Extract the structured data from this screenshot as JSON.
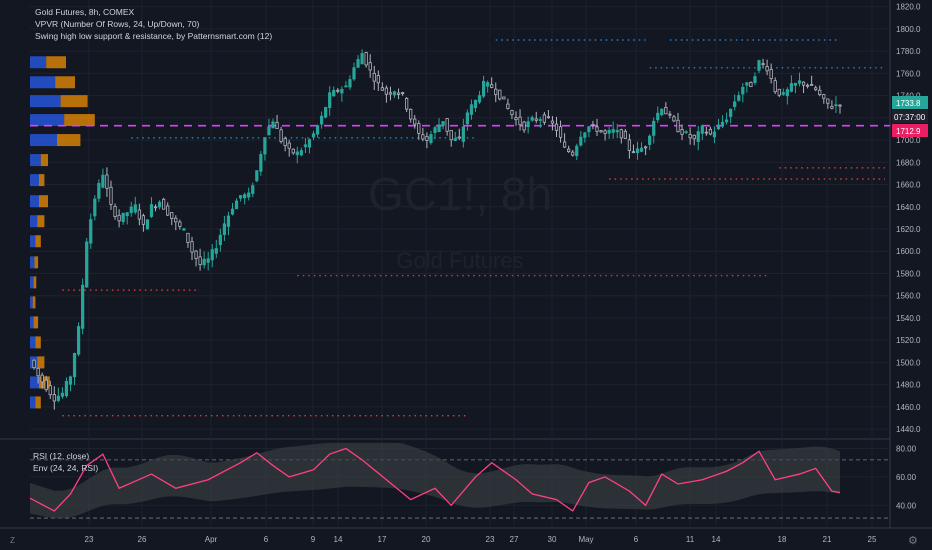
{
  "legend": {
    "title": "Gold Futures, 8h, COMEX",
    "vpvr": "VPVR (Number Of Rows, 24, Up/Down, 70)",
    "swing": "Swing high low support & resistance, by Patternsmart.com (12)"
  },
  "watermark": {
    "symbol": "GC1!, 8h",
    "name": "Gold Futures"
  },
  "rsi_legend": {
    "rsi": "RSI (12, close)",
    "env": "Env (24, 24, RSI)"
  },
  "price_tags": {
    "last": "1733.8",
    "countdown": "07:37:00",
    "level": "1712.9"
  },
  "buttons": {
    "timezone": "Z",
    "settings": "settings-icon"
  },
  "colors": {
    "background": "#131722",
    "up": "#26a69a",
    "down": "#ef5350",
    "volume_up": "#2962ff",
    "volume_down": "#ff9800",
    "rsi_line": "#ff4081",
    "envelope": "#3c4346",
    "level_line": "#e040fb",
    "resistance_dots": "#2196f3",
    "support_dots": "#f44336"
  },
  "chart_data": {
    "type": "candlestick",
    "price_axis": {
      "ticks": [
        1440,
        1460,
        1480,
        1500,
        1520,
        1540,
        1560,
        1580,
        1600,
        1620,
        1640,
        1660,
        1680,
        1700,
        1720,
        1740,
        1760,
        1780,
        1800,
        1820
      ],
      "range": [
        1432,
        1826
      ]
    },
    "time_axis": {
      "labels": [
        "23",
        "26",
        "Apr",
        "6",
        "9",
        "14",
        "17",
        "20",
        "23",
        "27",
        "30",
        "May",
        "6",
        "11",
        "14",
        "18",
        "21",
        "25"
      ]
    },
    "close_path": [
      [
        0,
        1502
      ],
      [
        2,
        1488
      ],
      [
        4,
        1478
      ],
      [
        6,
        1468
      ],
      [
        8,
        1472
      ],
      [
        10,
        1488
      ],
      [
        12,
        1530
      ],
      [
        14,
        1610
      ],
      [
        16,
        1648
      ],
      [
        18,
        1670
      ],
      [
        20,
        1640
      ],
      [
        22,
        1628
      ],
      [
        24,
        1635
      ],
      [
        26,
        1640
      ],
      [
        28,
        1622
      ],
      [
        30,
        1640
      ],
      [
        32,
        1645
      ],
      [
        34,
        1635
      ],
      [
        36,
        1625
      ],
      [
        38,
        1618
      ],
      [
        40,
        1600
      ],
      [
        42,
        1588
      ],
      [
        44,
        1592
      ],
      [
        46,
        1605
      ],
      [
        48,
        1625
      ],
      [
        50,
        1640
      ],
      [
        52,
        1650
      ],
      [
        54,
        1650
      ],
      [
        56,
        1672
      ],
      [
        58,
        1705
      ],
      [
        60,
        1718
      ],
      [
        62,
        1700
      ],
      [
        64,
        1690
      ],
      [
        66,
        1688
      ],
      [
        68,
        1695
      ],
      [
        70,
        1705
      ],
      [
        72,
        1720
      ],
      [
        74,
        1740
      ],
      [
        76,
        1745
      ],
      [
        78,
        1748
      ],
      [
        80,
        1765
      ],
      [
        82,
        1778
      ],
      [
        84,
        1762
      ],
      [
        86,
        1750
      ],
      [
        88,
        1742
      ],
      [
        90,
        1745
      ],
      [
        92,
        1740
      ],
      [
        94,
        1720
      ],
      [
        96,
        1705
      ],
      [
        98,
        1700
      ],
      [
        100,
        1710
      ],
      [
        102,
        1718
      ],
      [
        104,
        1700
      ],
      [
        106,
        1700
      ],
      [
        108,
        1725
      ],
      [
        110,
        1735
      ],
      [
        112,
        1750
      ],
      [
        114,
        1748
      ],
      [
        116,
        1740
      ],
      [
        118,
        1728
      ],
      [
        120,
        1718
      ],
      [
        122,
        1712
      ],
      [
        124,
        1718
      ],
      [
        126,
        1720
      ],
      [
        128,
        1718
      ],
      [
        130,
        1710
      ],
      [
        132,
        1692
      ],
      [
        134,
        1688
      ],
      [
        136,
        1705
      ],
      [
        138,
        1712
      ],
      [
        140,
        1710
      ],
      [
        142,
        1705
      ],
      [
        144,
        1708
      ],
      [
        146,
        1705
      ],
      [
        148,
        1692
      ],
      [
        150,
        1690
      ],
      [
        152,
        1695
      ],
      [
        154,
        1718
      ],
      [
        156,
        1730
      ],
      [
        158,
        1720
      ],
      [
        160,
        1710
      ],
      [
        162,
        1705
      ],
      [
        164,
        1700
      ],
      [
        166,
        1710
      ],
      [
        168,
        1705
      ],
      [
        170,
        1712
      ],
      [
        172,
        1720
      ],
      [
        174,
        1735
      ],
      [
        176,
        1748
      ],
      [
        178,
        1750
      ],
      [
        180,
        1770
      ],
      [
        182,
        1765
      ],
      [
        184,
        1745
      ],
      [
        186,
        1740
      ],
      [
        188,
        1748
      ],
      [
        190,
        1752
      ],
      [
        192,
        1750
      ],
      [
        194,
        1745
      ],
      [
        196,
        1735
      ],
      [
        198,
        1730
      ],
      [
        200,
        1733.8
      ]
    ],
    "support_resistance": [
      {
        "kind": "resistance",
        "price": 1790,
        "from": 115,
        "to": 152
      },
      {
        "kind": "resistance",
        "price": 1790,
        "from": 158,
        "to": 200
      },
      {
        "kind": "resistance",
        "price": 1765,
        "from": 153,
        "to": 278
      },
      {
        "kind": "resistance",
        "price": 1702,
        "from": 25,
        "to": 110
      },
      {
        "kind": "support",
        "price": 1665,
        "from": 143,
        "to": 228
      },
      {
        "kind": "support",
        "price": 1675,
        "from": 185,
        "to": 278
      },
      {
        "kind": "support",
        "price": 1578,
        "from": 66,
        "to": 182
      },
      {
        "kind": "support",
        "price": 1565,
        "from": 8,
        "to": 42
      },
      {
        "kind": "support",
        "price": 1452,
        "from": 8,
        "to": 108
      }
    ],
    "level_line": 1712.9,
    "rsi": {
      "ticks": [
        40.0,
        60.0,
        80.0
      ],
      "range": [
        24,
        86
      ],
      "bands": [
        72,
        31
      ],
      "path": [
        [
          0,
          45
        ],
        [
          6,
          36
        ],
        [
          10,
          48
        ],
        [
          14,
          68
        ],
        [
          18,
          76
        ],
        [
          22,
          52
        ],
        [
          30,
          62
        ],
        [
          36,
          52
        ],
        [
          44,
          58
        ],
        [
          48,
          64
        ],
        [
          52,
          70
        ],
        [
          56,
          77
        ],
        [
          60,
          68
        ],
        [
          64,
          60
        ],
        [
          70,
          65
        ],
        [
          74,
          76
        ],
        [
          78,
          80
        ],
        [
          82,
          72
        ],
        [
          88,
          58
        ],
        [
          94,
          44
        ],
        [
          100,
          52
        ],
        [
          104,
          40
        ],
        [
          110,
          60
        ],
        [
          114,
          70
        ],
        [
          120,
          58
        ],
        [
          124,
          48
        ],
        [
          130,
          44
        ],
        [
          134,
          36
        ],
        [
          138,
          56
        ],
        [
          142,
          60
        ],
        [
          148,
          50
        ],
        [
          152,
          40
        ],
        [
          156,
          62
        ],
        [
          160,
          55
        ],
        [
          166,
          58
        ],
        [
          172,
          64
        ],
        [
          176,
          70
        ],
        [
          180,
          78
        ],
        [
          184,
          58
        ],
        [
          190,
          62
        ],
        [
          194,
          66
        ],
        [
          198,
          50
        ],
        [
          200,
          49
        ]
      ]
    },
    "volume_profile": [
      {
        "price": 1770,
        "up": 0.18,
        "down": 0.22
      },
      {
        "price": 1752,
        "up": 0.28,
        "down": 0.22
      },
      {
        "price": 1735,
        "up": 0.34,
        "down": 0.3
      },
      {
        "price": 1718,
        "up": 0.38,
        "down": 0.34
      },
      {
        "price": 1700,
        "up": 0.3,
        "down": 0.26
      },
      {
        "price": 1682,
        "up": 0.12,
        "down": 0.08
      },
      {
        "price": 1664,
        "up": 0.1,
        "down": 0.06
      },
      {
        "price": 1645,
        "up": 0.1,
        "down": 0.1
      },
      {
        "price": 1627,
        "up": 0.08,
        "down": 0.08
      },
      {
        "price": 1609,
        "up": 0.06,
        "down": 0.06
      },
      {
        "price": 1590,
        "up": 0.05,
        "down": 0.04
      },
      {
        "price": 1572,
        "up": 0.04,
        "down": 0.03
      },
      {
        "price": 1554,
        "up": 0.03,
        "down": 0.03
      },
      {
        "price": 1536,
        "up": 0.04,
        "down": 0.05
      },
      {
        "price": 1518,
        "up": 0.06,
        "down": 0.06
      },
      {
        "price": 1500,
        "up": 0.08,
        "down": 0.08
      },
      {
        "price": 1482,
        "up": 0.1,
        "down": 0.12
      },
      {
        "price": 1464,
        "up": 0.06,
        "down": 0.06
      }
    ]
  }
}
